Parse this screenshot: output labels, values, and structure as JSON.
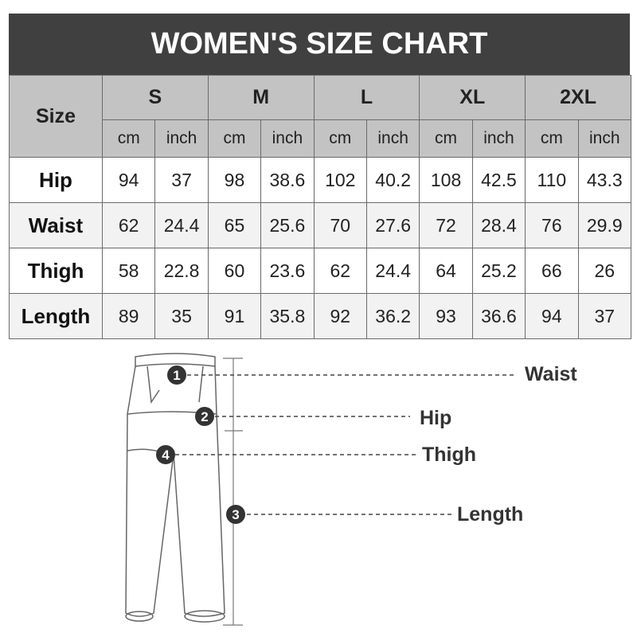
{
  "title": "WOMEN'S SIZE CHART",
  "table": {
    "corner": "Size",
    "sizes": [
      "S",
      "M",
      "L",
      "XL",
      "2XL"
    ],
    "units": [
      "cm",
      "inch"
    ],
    "rows": [
      {
        "label": "Hip",
        "values": [
          "94",
          "37",
          "98",
          "38.6",
          "102",
          "40.2",
          "108",
          "42.5",
          "110",
          "43.3"
        ]
      },
      {
        "label": "Waist",
        "values": [
          "62",
          "24.4",
          "65",
          "25.6",
          "70",
          "27.6",
          "72",
          "28.4",
          "76",
          "29.9"
        ]
      },
      {
        "label": "Thigh",
        "values": [
          "58",
          "22.8",
          "60",
          "23.6",
          "62",
          "24.4",
          "64",
          "25.2",
          "66",
          "26"
        ]
      },
      {
        "label": "Length",
        "values": [
          "89",
          "35",
          "91",
          "35.8",
          "92",
          "36.2",
          "93",
          "36.6",
          "94",
          "37"
        ]
      }
    ]
  },
  "diagram": {
    "markers": [
      {
        "number": "1",
        "label": "Waist"
      },
      {
        "number": "2",
        "label": "Hip"
      },
      {
        "number": "4",
        "label": "Thigh"
      },
      {
        "number": "3",
        "label": "Length"
      }
    ]
  }
}
